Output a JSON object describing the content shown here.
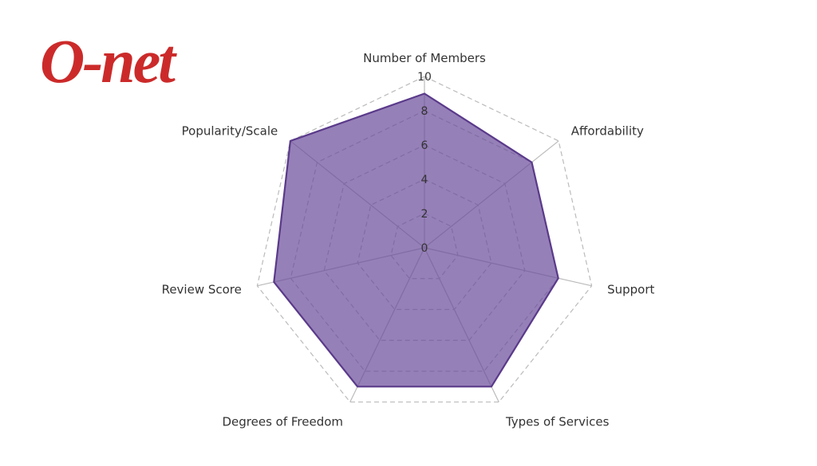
{
  "logo": {
    "text": "O-net",
    "color": "#cc2a2a"
  },
  "chart_data": {
    "type": "radar",
    "axes": [
      "Number of Members",
      "Affordability",
      "Support",
      "Types of Services",
      "Degrees of Freedom",
      "Review Score",
      "Popularity/Scale"
    ],
    "values": [
      9,
      8,
      8,
      9,
      9,
      9,
      10
    ],
    "range": [
      0,
      10
    ],
    "ticks": [
      "0",
      "2",
      "4",
      "6",
      "8",
      "10"
    ],
    "fill_color": "#6a4a9a",
    "line_color": "#5a3a8a",
    "grid_color": "#bbbbbb"
  }
}
